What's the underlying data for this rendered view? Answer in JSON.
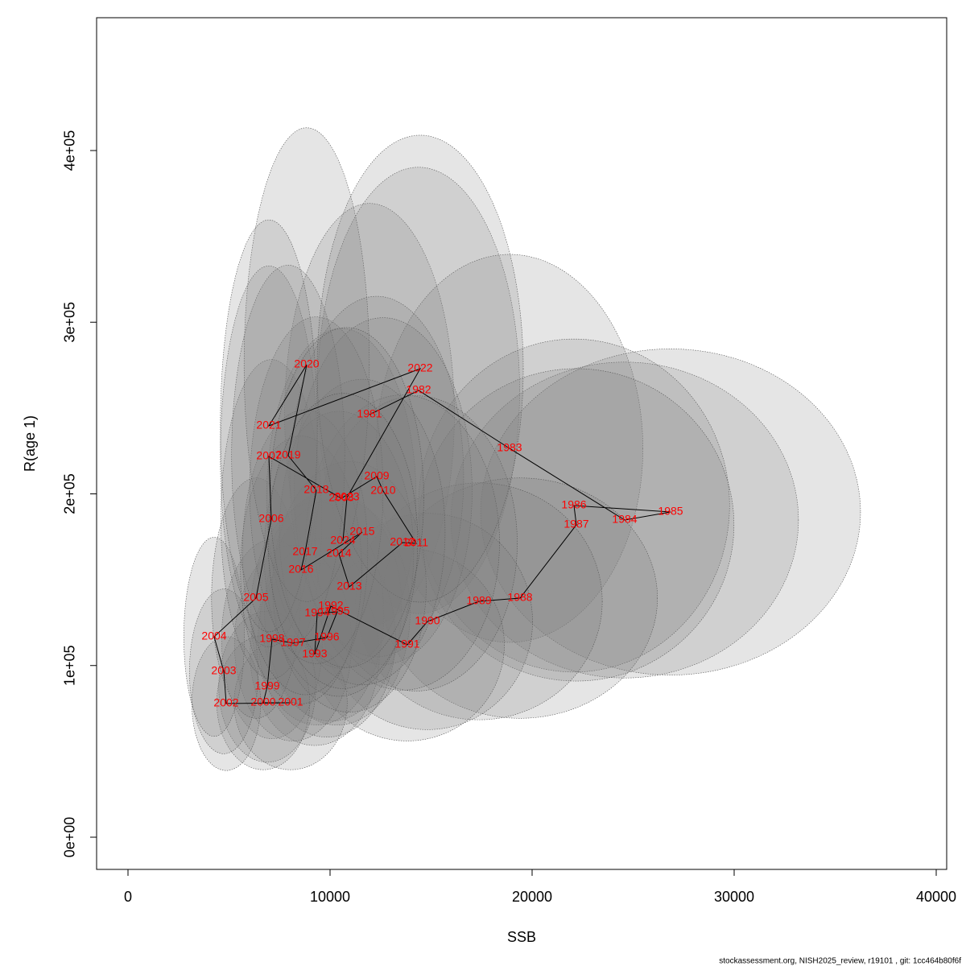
{
  "chart_data": {
    "type": "scatter",
    "xlabel": "SSB",
    "ylabel": "R(age 1)",
    "footnote": "stockassessment.org, NISH2025_review, r19101 , git: 1cc464b80f6f",
    "labels": [
      "1981",
      "1982",
      "1983",
      "1984",
      "1985",
      "1986",
      "1987",
      "1988",
      "1989",
      "1990",
      "1991",
      "1992",
      "1993",
      "1994",
      "1995",
      "1996",
      "1997",
      "1998",
      "1999",
      "2000",
      "2001",
      "2002",
      "2003",
      "2004",
      "2005",
      "2006",
      "2007",
      "2008",
      "2009",
      "2010",
      "2011",
      "2012",
      "2013",
      "2014",
      "2015",
      "2016",
      "2017",
      "2018",
      "2019",
      "2020",
      "2021",
      "2022",
      "2023",
      "2024"
    ],
    "x": [
      11952,
      14382,
      18884,
      24582,
      26853,
      22072,
      22191,
      19402,
      17371,
      14821,
      13825,
      10040,
      9243,
      9363,
      10359,
      9841,
      8167,
      7131,
      6892,
      6693,
      8048,
      4861,
      4741,
      4263,
      6335,
      7092,
      6972,
      10558,
      12311,
      12629,
      14263,
      13586,
      10956,
      10438,
      11594,
      8566,
      8765,
      9323,
      7928,
      8845,
      6972,
      14462,
      10837,
      10637
    ],
    "values": [
      246190,
      260260,
      226500,
      184760,
      189450,
      193200,
      181950,
      139270,
      137400,
      125670,
      112080,
      134580,
      106450,
      130360,
      131300,
      116300,
      113010,
      115360,
      87690,
      78310,
      78310,
      77840,
      96600,
      116760,
      139270,
      185230,
      221810,
      197420,
      210080,
      201640,
      171160,
      171630,
      145840,
      165060,
      177730,
      155690,
      166000,
      202110,
      222270,
      275260,
      239620,
      272920,
      197890,
      172570
    ],
    "x_halfwidth": [
      4200,
      5000,
      6600,
      8600,
      9400,
      7700,
      7800,
      6800,
      6100,
      5200,
      4800,
      3500,
      3200,
      3300,
      3600,
      3400,
      2900,
      2500,
      2400,
      2300,
      2800,
      1700,
      1700,
      1500,
      2200,
      2500,
      2400,
      3700,
      4300,
      4400,
      5000,
      4800,
      3800,
      3700,
      4100,
      3000,
      3100,
      3300,
      2800,
      3100,
      2400,
      5100,
      3800,
      3700
    ],
    "y_halfwidth": [
      123000,
      130000,
      113000,
      92000,
      95000,
      97000,
      91000,
      70000,
      69000,
      63000,
      56000,
      67000,
      53000,
      65000,
      66000,
      58000,
      57000,
      58000,
      44000,
      39000,
      39000,
      39000,
      48000,
      58000,
      70000,
      93000,
      111000,
      99000,
      105000,
      101000,
      86000,
      86000,
      73000,
      83000,
      89000,
      78000,
      83000,
      101000,
      111000,
      138000,
      120000,
      136000,
      99000,
      86000
    ],
    "line_color": "#000000",
    "label_color": "#ff0000",
    "ellipse_color": "#7f7f7f",
    "xlim": [
      -1554,
      40518
    ],
    "ylim": [
      -18757,
      477374
    ],
    "xticks": [
      0,
      10000,
      20000,
      30000,
      40000
    ],
    "yticks": [
      {
        "value": 0,
        "label": "0e+00"
      },
      {
        "value": 100000,
        "label": "1e+05"
      },
      {
        "value": 200000,
        "label": "2e+05"
      },
      {
        "value": 300000,
        "label": "3e+05"
      },
      {
        "value": 400000,
        "label": "4e+05"
      }
    ]
  }
}
